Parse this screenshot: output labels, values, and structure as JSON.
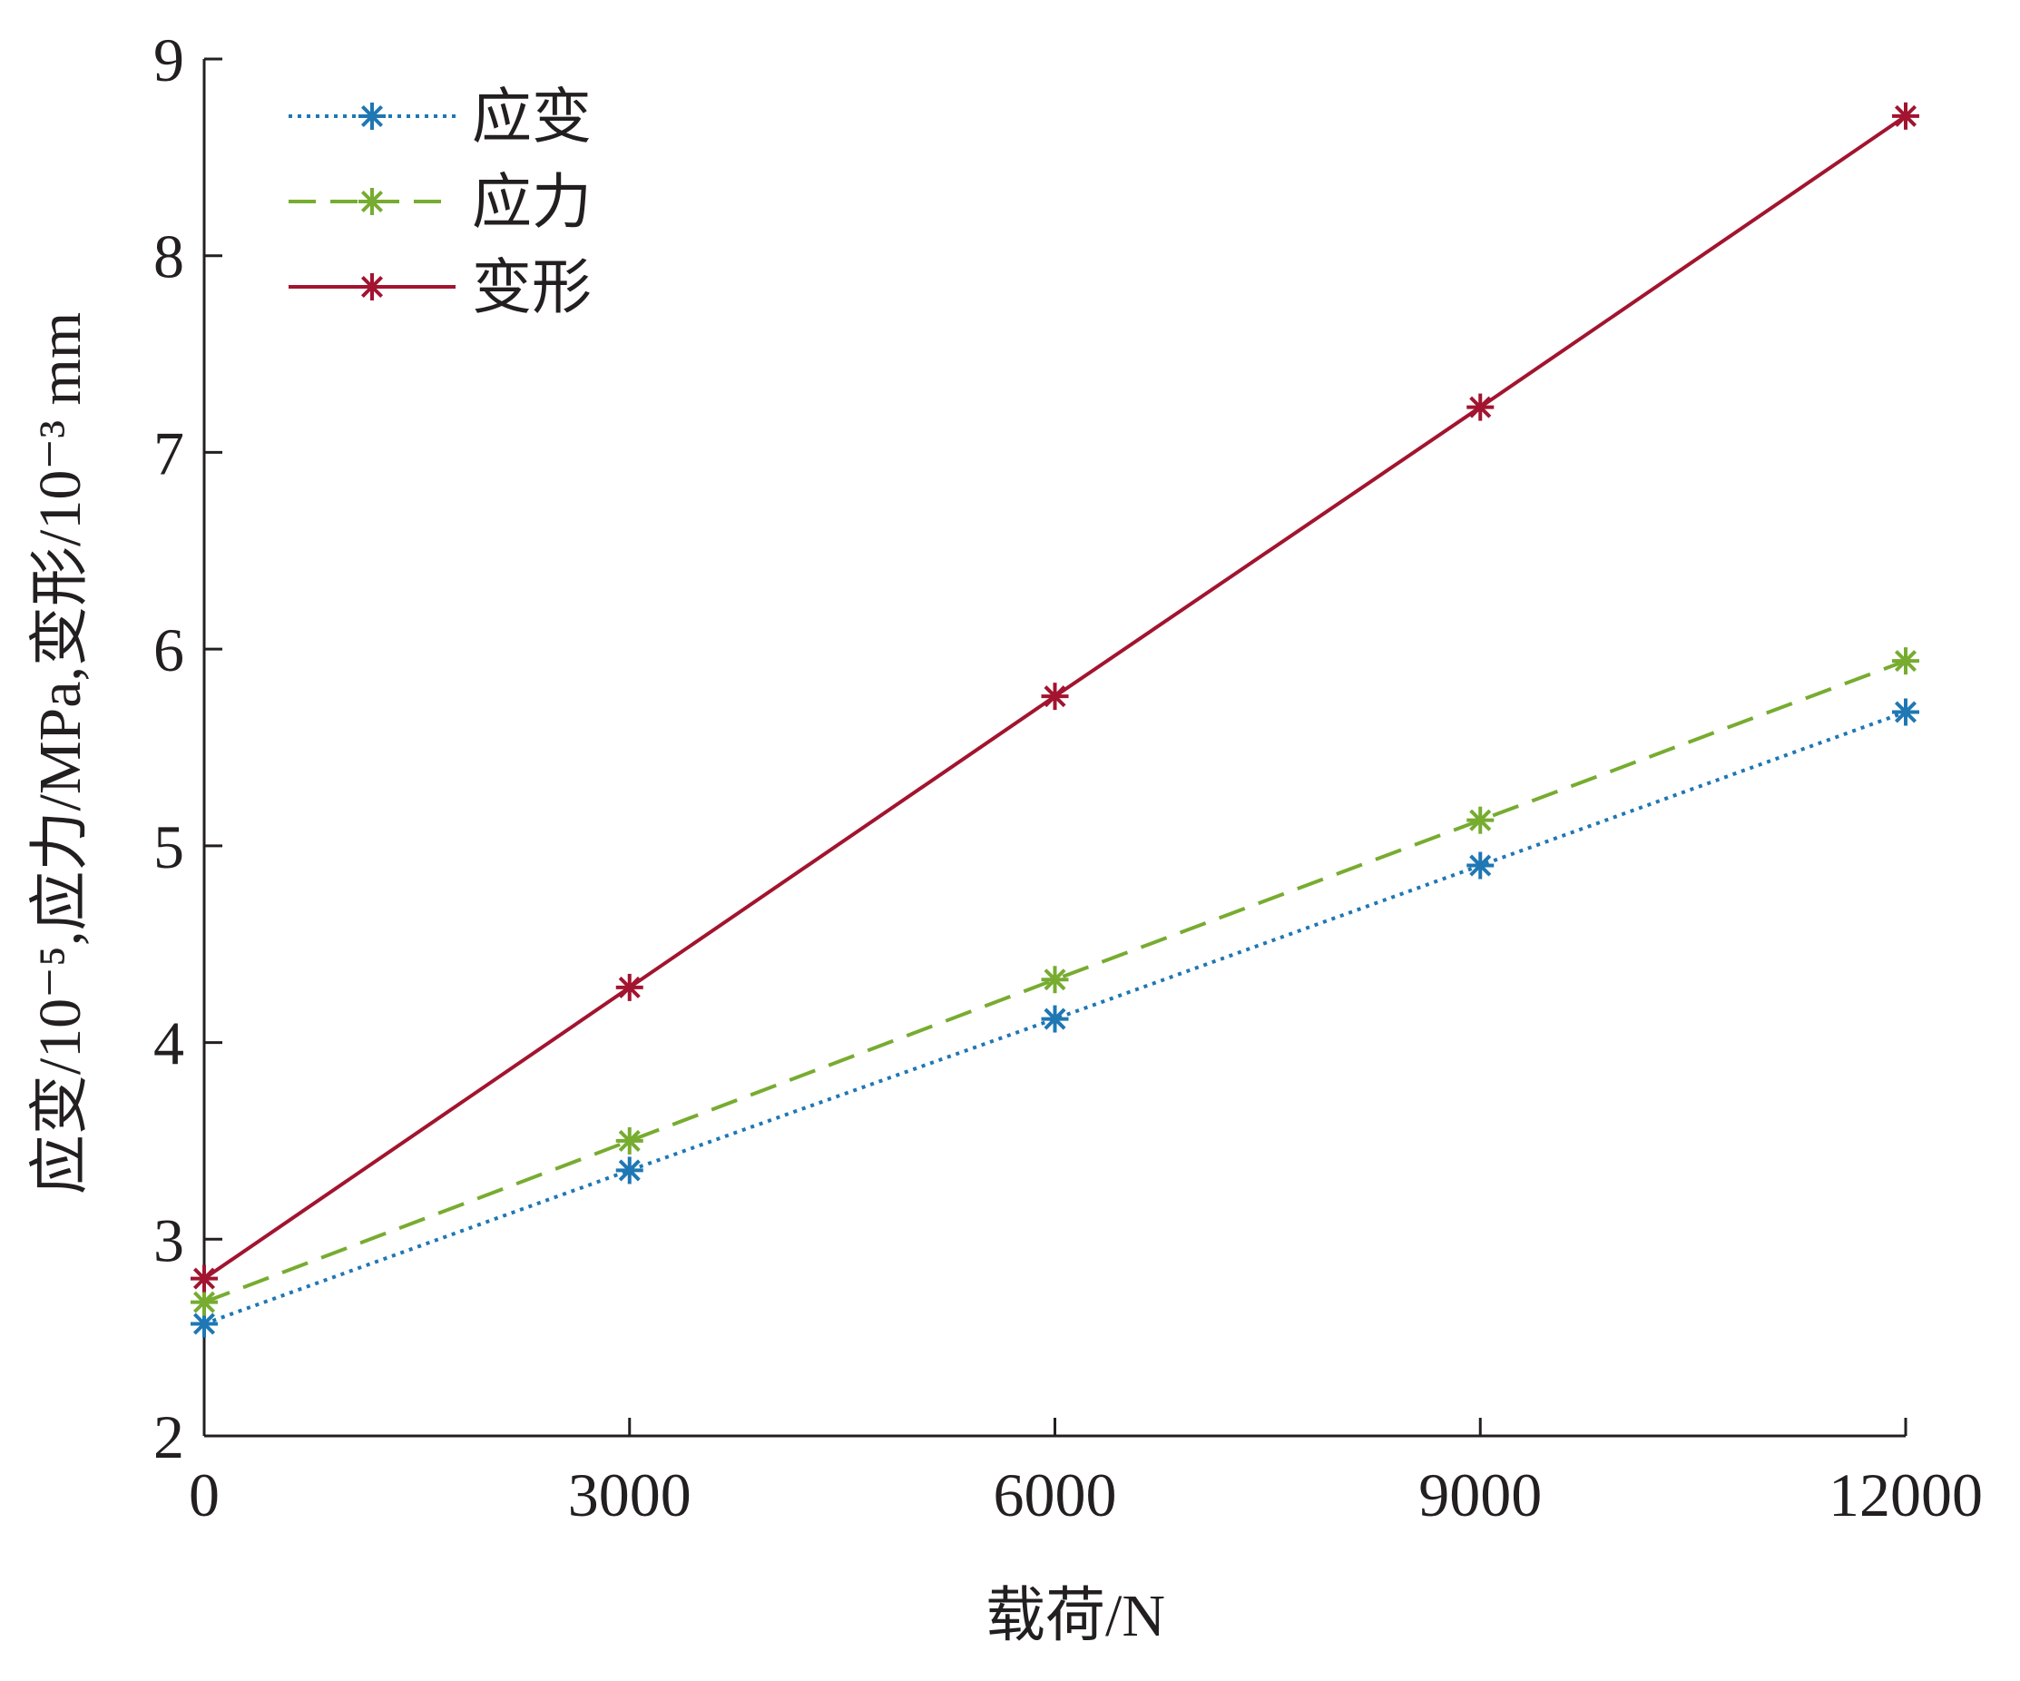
{
  "chart_data": {
    "type": "line",
    "x": [
      0,
      3000,
      6000,
      9000,
      12000
    ],
    "xticks": [
      "0",
      "3000",
      "6000",
      "9000",
      "12000"
    ],
    "yticks": [
      "2",
      "3",
      "4",
      "5",
      "6",
      "7",
      "8",
      "9"
    ],
    "xlim": [
      0,
      12000
    ],
    "ylim": [
      2,
      9
    ],
    "xlabel": "载荷/N",
    "ylabel": "应变/10⁻⁵,应力/MPa,变形/10⁻³ mm",
    "grid": false,
    "legend_position": "top-left",
    "series": [
      {
        "name": "应变",
        "values": [
          2.57,
          3.35,
          4.12,
          4.9,
          5.68
        ],
        "color": "#1f77b4",
        "line_style": "dotted",
        "marker": "asterisk"
      },
      {
        "name": "应力",
        "values": [
          2.68,
          3.5,
          4.32,
          5.13,
          5.94
        ],
        "color": "#77ac30",
        "line_style": "dashed",
        "marker": "asterisk"
      },
      {
        "name": "变形",
        "values": [
          2.8,
          4.28,
          5.76,
          7.23,
          8.71
        ],
        "color": "#a2142f",
        "line_style": "solid",
        "marker": "asterisk"
      }
    ]
  }
}
